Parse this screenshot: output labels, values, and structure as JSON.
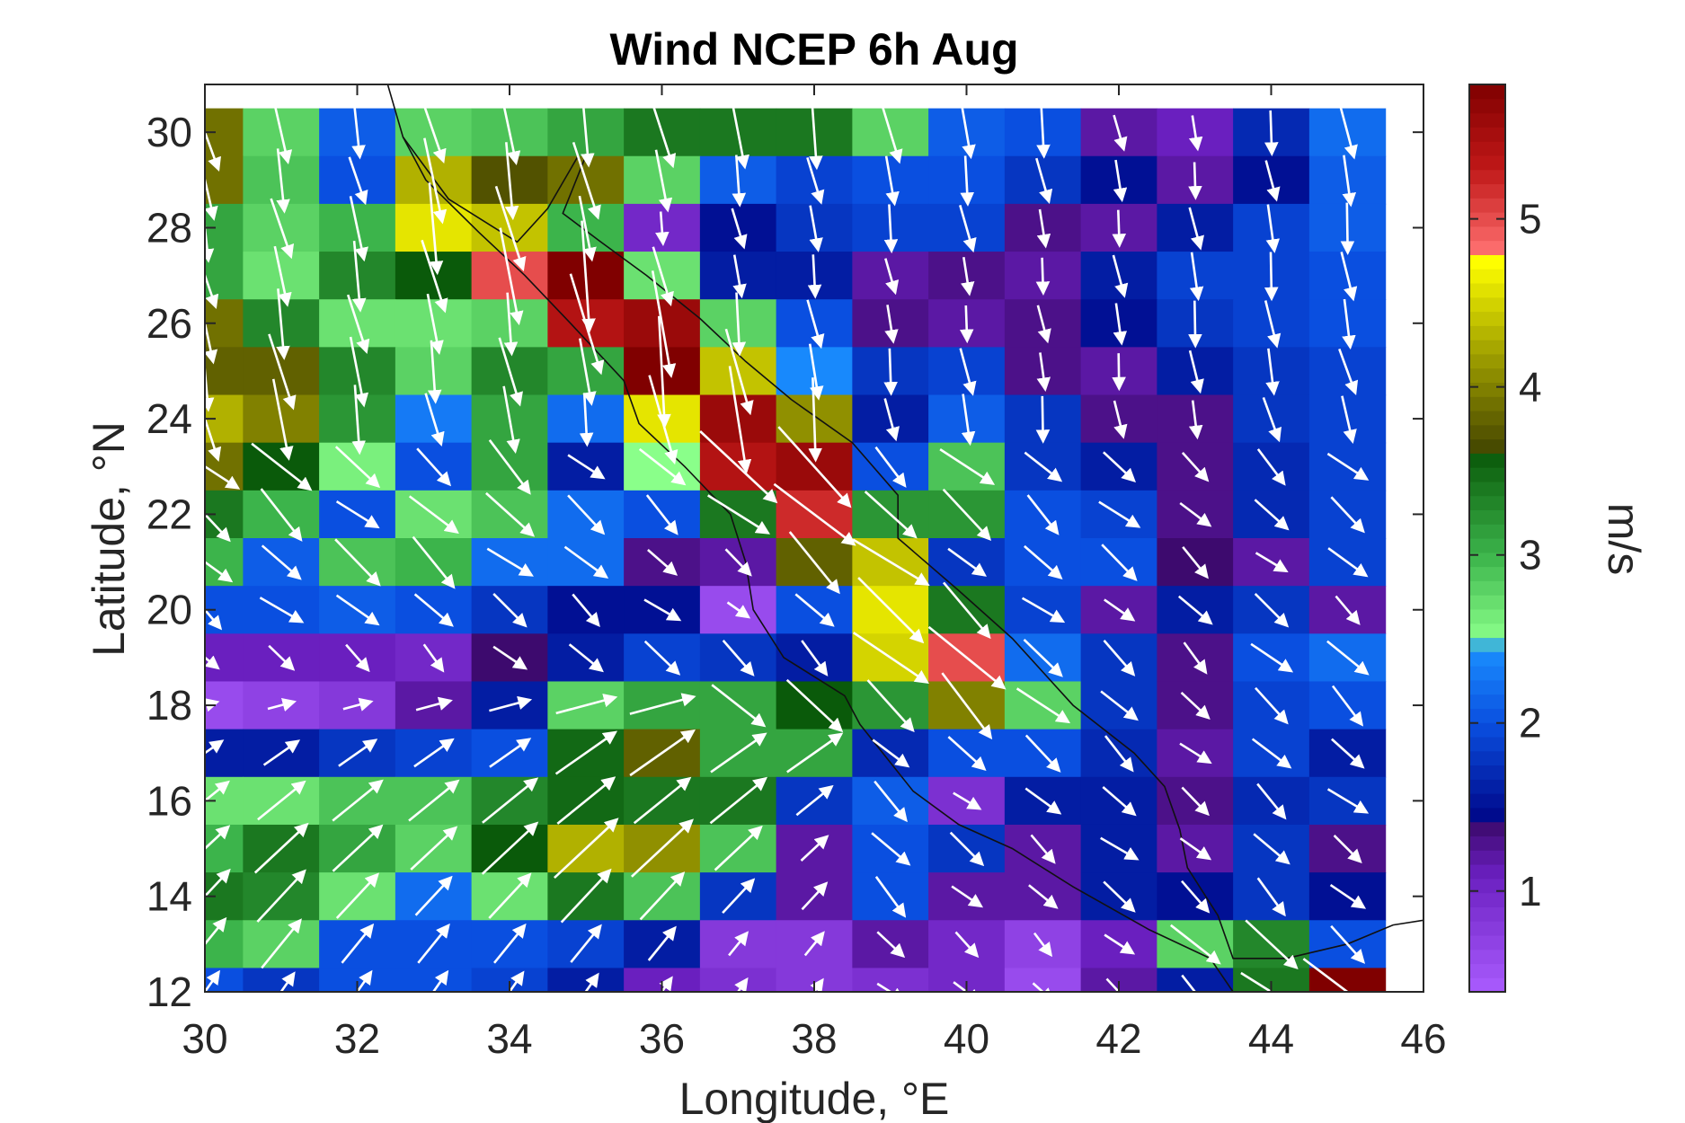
{
  "chart_data": {
    "type": "heatmap",
    "title": "Wind NCEP 6h Aug",
    "xlabel": "Longitude, °E",
    "ylabel": "Latitude, °N",
    "xlim": [
      30,
      46
    ],
    "ylim": [
      12,
      31
    ],
    "x_ticks": [
      "30",
      "32",
      "34",
      "36",
      "38",
      "40",
      "42",
      "44",
      "46"
    ],
    "y_ticks": [
      "12",
      "14",
      "16",
      "18",
      "20",
      "22",
      "24",
      "26",
      "28",
      "30"
    ],
    "grid": false,
    "colorbar": {
      "label": "m/s",
      "range": [
        0.4,
        5.8
      ],
      "ticks": [
        "1",
        "2",
        "3",
        "4",
        "5"
      ],
      "stops": [
        {
          "v": 0.4,
          "color": "#aa5cff"
        },
        {
          "v": 1.1,
          "color": "#6a1fbf"
        },
        {
          "v": 1.4,
          "color": "#3d0a6e"
        },
        {
          "v": 1.45,
          "color": "#000a8c"
        },
        {
          "v": 2.0,
          "color": "#0a4fe0"
        },
        {
          "v": 2.45,
          "color": "#1a90ff"
        },
        {
          "v": 2.5,
          "color": "#8aff8a"
        },
        {
          "v": 3.0,
          "color": "#3cb44b"
        },
        {
          "v": 3.6,
          "color": "#0a5a0a"
        },
        {
          "v": 3.65,
          "color": "#4a4a00"
        },
        {
          "v": 4.2,
          "color": "#a0a000"
        },
        {
          "v": 4.75,
          "color": "#ffff00"
        },
        {
          "v": 4.8,
          "color": "#ff7070"
        },
        {
          "v": 5.3,
          "color": "#c01818"
        },
        {
          "v": 5.8,
          "color": "#800000"
        }
      ]
    },
    "grid_lon": [
      30,
      31,
      32,
      33,
      34,
      35,
      36,
      37,
      38,
      39,
      40,
      41,
      42,
      43,
      44,
      45
    ],
    "grid_lat": [
      30,
      29,
      28,
      27,
      26,
      25,
      24,
      23,
      22,
      21,
      20,
      19,
      18,
      17,
      16,
      15,
      14,
      13,
      12
    ],
    "speed": [
      [
        3.9,
        2.8,
        2.1,
        2.8,
        2.9,
        3.1,
        3.4,
        3.4,
        3.4,
        2.8,
        2.1,
        2.0,
        1.2,
        1.1,
        1.7,
        2.2
      ],
      [
        3.9,
        2.9,
        2.0,
        4.3,
        3.7,
        3.9,
        2.8,
        2.1,
        1.9,
        2.0,
        2.0,
        1.8,
        1.5,
        1.2,
        1.5,
        2.1
      ],
      [
        3.1,
        2.8,
        3.0,
        4.6,
        4.4,
        3.0,
        1.0,
        1.5,
        1.8,
        1.9,
        1.9,
        1.3,
        1.2,
        1.6,
        1.9,
        2.1
      ],
      [
        3.1,
        2.7,
        3.3,
        3.6,
        5.0,
        5.8,
        2.7,
        1.6,
        1.6,
        1.2,
        1.3,
        1.2,
        1.6,
        1.9,
        1.9,
        2.0
      ],
      [
        3.9,
        3.3,
        2.7,
        2.7,
        2.8,
        5.4,
        5.6,
        2.8,
        2.0,
        1.3,
        1.2,
        1.3,
        1.5,
        1.8,
        1.9,
        2.0
      ],
      [
        3.8,
        3.8,
        3.3,
        2.8,
        3.3,
        3.1,
        5.8,
        4.4,
        2.4,
        1.8,
        1.9,
        1.3,
        1.2,
        1.6,
        1.8,
        1.9
      ],
      [
        4.3,
        4.0,
        3.2,
        2.3,
        3.1,
        2.2,
        4.6,
        5.6,
        4.1,
        1.6,
        2.1,
        1.8,
        1.3,
        1.3,
        1.8,
        1.9
      ],
      [
        3.9,
        3.6,
        2.6,
        2.0,
        3.1,
        1.6,
        2.5,
        5.4,
        5.6,
        2.0,
        2.9,
        1.8,
        1.6,
        1.3,
        1.7,
        1.9
      ],
      [
        3.4,
        3.0,
        2.0,
        2.7,
        2.9,
        2.2,
        2.0,
        3.4,
        5.2,
        3.2,
        3.2,
        2.0,
        1.9,
        1.3,
        1.7,
        1.9
      ],
      [
        3.0,
        2.1,
        2.9,
        3.0,
        2.2,
        2.2,
        1.3,
        1.2,
        3.8,
        4.4,
        1.8,
        2.0,
        2.0,
        1.4,
        1.2,
        1.9
      ],
      [
        2.0,
        2.0,
        2.1,
        2.0,
        1.8,
        1.5,
        1.5,
        0.6,
        2.0,
        4.6,
        3.4,
        1.9,
        1.2,
        1.6,
        1.8,
        1.2
      ],
      [
        1.1,
        1.1,
        1.1,
        1.0,
        1.4,
        1.6,
        1.9,
        1.8,
        1.6,
        4.5,
        5.0,
        2.2,
        1.8,
        1.3,
        2.0,
        2.2
      ],
      [
        0.6,
        0.7,
        0.8,
        1.2,
        1.6,
        2.8,
        3.1,
        3.1,
        3.6,
        3.2,
        4.0,
        2.8,
        1.8,
        1.3,
        1.9,
        2.0
      ],
      [
        1.6,
        1.6,
        1.8,
        1.9,
        2.0,
        3.5,
        3.8,
        3.1,
        3.1,
        1.7,
        2.0,
        2.0,
        1.7,
        1.2,
        1.9,
        1.6
      ],
      [
        2.7,
        2.7,
        2.9,
        2.9,
        3.3,
        3.5,
        3.4,
        3.4,
        1.8,
        2.1,
        0.9,
        1.6,
        1.6,
        1.3,
        1.7,
        1.8
      ],
      [
        3.0,
        3.4,
        3.1,
        2.8,
        3.6,
        4.3,
        4.1,
        2.9,
        1.2,
        2.0,
        1.8,
        1.2,
        1.6,
        1.2,
        1.8,
        1.3
      ],
      [
        3.4,
        3.3,
        2.7,
        2.2,
        2.7,
        3.4,
        2.9,
        1.8,
        1.2,
        2.0,
        1.2,
        1.2,
        1.6,
        1.5,
        1.8,
        1.5
      ],
      [
        3.0,
        2.8,
        2.0,
        2.0,
        2.0,
        1.9,
        1.6,
        0.8,
        0.8,
        1.2,
        1.0,
        0.7,
        1.1,
        2.8,
        3.3,
        2.0
      ],
      [
        2.0,
        1.8,
        2.0,
        2.0,
        1.9,
        1.6,
        1.1,
        0.9,
        0.8,
        0.9,
        1.0,
        0.6,
        1.2,
        1.6,
        3.4,
        5.8
      ]
    ],
    "arrow_field": "white arrows, predominantly north-westerly (pointing SE/S) in the north and south-westerly (pointing NE/E) in the south-west"
  }
}
